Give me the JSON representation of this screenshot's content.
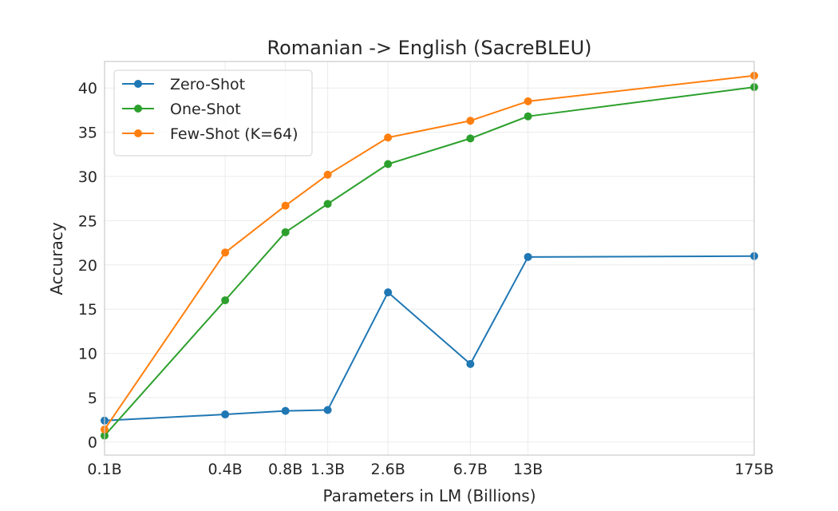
{
  "chart_data": {
    "type": "line",
    "title": "Romanian -> English (SacreBLEU)",
    "xlabel": "Parameters in LM (Billions)",
    "ylabel": "Accuracy",
    "x_scale": "log",
    "x": [
      0.1,
      0.4,
      0.8,
      1.3,
      2.6,
      6.7,
      13,
      175
    ],
    "x_tick_labels": [
      "0.1B",
      "0.4B",
      "0.8B",
      "1.3B",
      "2.6B",
      "6.7B",
      "13B",
      "175B"
    ],
    "xlim": [
      0.1,
      175
    ],
    "ylim": [
      -1.5,
      43
    ],
    "y_ticks": [
      0,
      5,
      10,
      15,
      20,
      25,
      30,
      35,
      40
    ],
    "grid": true,
    "legend_position": "top-left",
    "series": [
      {
        "name": "Zero-Shot",
        "color": "#1f77b4",
        "values": [
          2.4,
          3.1,
          3.5,
          3.6,
          16.9,
          8.8,
          20.9,
          21.0
        ]
      },
      {
        "name": "One-Shot",
        "color": "#2ca02c",
        "values": [
          0.7,
          16.0,
          23.7,
          26.9,
          31.4,
          34.3,
          36.8,
          40.1
        ]
      },
      {
        "name": "Few-Shot (K=64)",
        "color": "#ff7f0e",
        "values": [
          1.4,
          21.4,
          26.7,
          30.2,
          34.4,
          36.3,
          38.5,
          41.4
        ]
      }
    ]
  }
}
